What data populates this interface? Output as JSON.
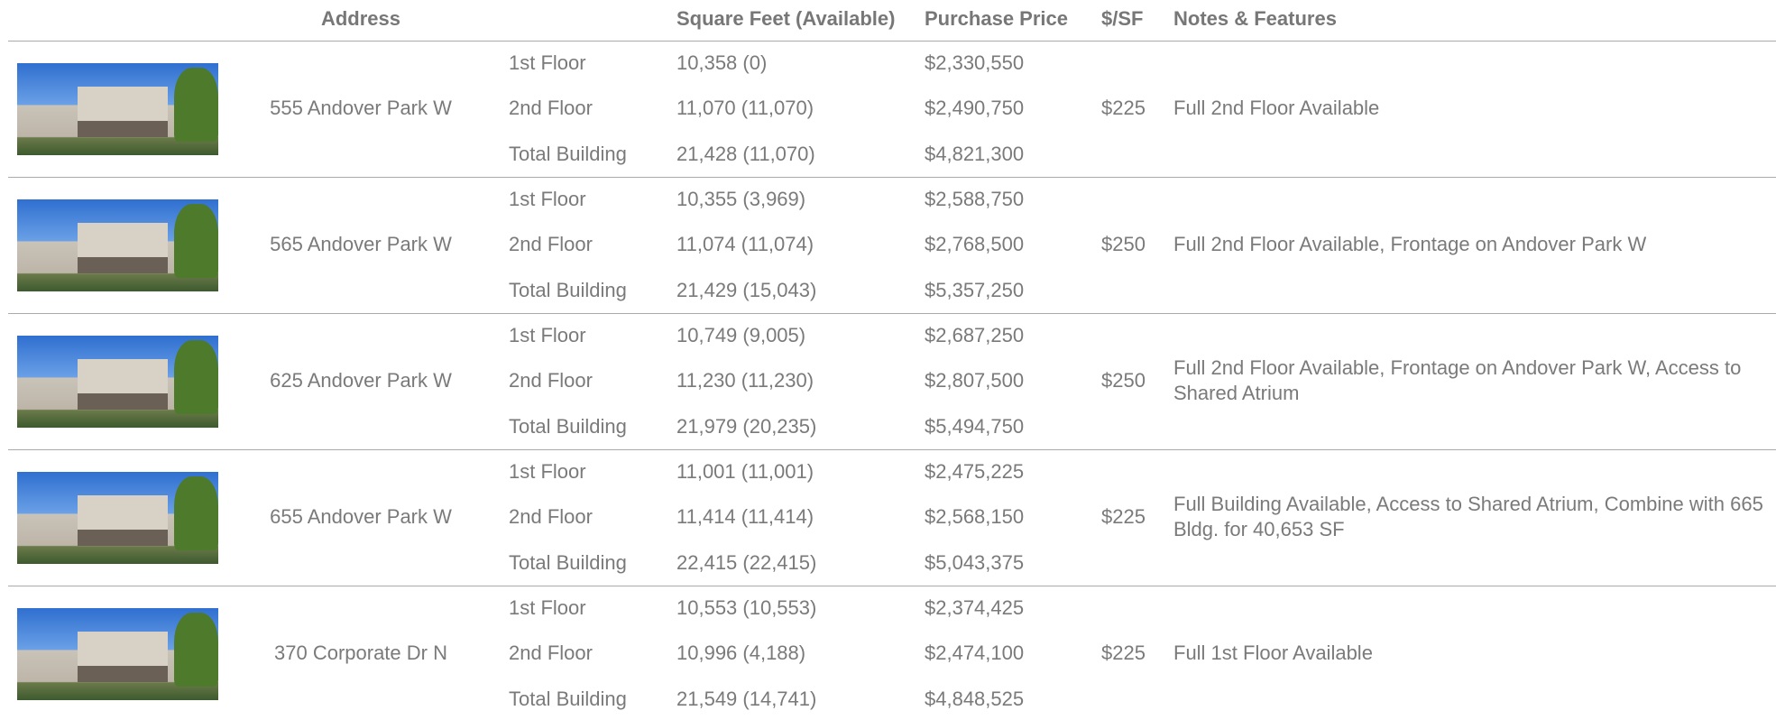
{
  "table": {
    "headers": {
      "address": "Address",
      "square_feet": "Square Feet (Available)",
      "purchase_price": "Purchase Price",
      "price_per_sf": "$/SF",
      "notes": "Notes & Features"
    },
    "rows": [
      {
        "address": "555 Andover Park W",
        "price_per_sf": "$225",
        "notes": "Full 2nd Floor Available",
        "floors": [
          {
            "label": "1st Floor",
            "square_feet": "10,358 (0)",
            "purchase_price": "$2,330,550"
          },
          {
            "label": "2nd Floor",
            "square_feet": "11,070 (11,070)",
            "purchase_price": "$2,490,750"
          },
          {
            "label": "Total Building",
            "square_feet": "21,428 (11,070)",
            "purchase_price": "$4,821,300"
          }
        ]
      },
      {
        "address": "565 Andover Park W",
        "price_per_sf": "$250",
        "notes": "Full 2nd Floor Available, Frontage on Andover Park W",
        "floors": [
          {
            "label": "1st Floor",
            "square_feet": "10,355 (3,969)",
            "purchase_price": "$2,588,750"
          },
          {
            "label": "2nd Floor",
            "square_feet": "11,074 (11,074)",
            "purchase_price": "$2,768,500"
          },
          {
            "label": "Total Building",
            "square_feet": "21,429 (15,043)",
            "purchase_price": "$5,357,250"
          }
        ]
      },
      {
        "address": "625 Andover Park W",
        "price_per_sf": "$250",
        "notes": "Full 2nd Floor Available, Frontage on Andover Park W, Access to Shared Atrium",
        "floors": [
          {
            "label": "1st Floor",
            "square_feet": "10,749 (9,005)",
            "purchase_price": "$2,687,250"
          },
          {
            "label": "2nd Floor",
            "square_feet": "11,230 (11,230)",
            "purchase_price": "$2,807,500"
          },
          {
            "label": "Total Building",
            "square_feet": "21,979 (20,235)",
            "purchase_price": "$5,494,750"
          }
        ]
      },
      {
        "address": "655 Andover Park W",
        "price_per_sf": "$225",
        "notes": "Full Building Available, Access to Shared Atrium, Combine with 665 Bldg. for 40,653 SF",
        "floors": [
          {
            "label": "1st Floor",
            "square_feet": "11,001 (11,001)",
            "purchase_price": "$2,475,225"
          },
          {
            "label": "2nd Floor",
            "square_feet": "11,414 (11,414)",
            "purchase_price": "$2,568,150"
          },
          {
            "label": "Total Building",
            "square_feet": "22,415 (22,415)",
            "purchase_price": "$5,043,375"
          }
        ]
      },
      {
        "address": "370 Corporate Dr N",
        "price_per_sf": "$225",
        "notes": "Full 1st Floor Available",
        "floors": [
          {
            "label": "1st Floor",
            "square_feet": "10,553 (10,553)",
            "purchase_price": "$2,374,425"
          },
          {
            "label": "2nd Floor",
            "square_feet": "10,996 (4,188)",
            "purchase_price": "$2,474,100"
          },
          {
            "label": "Total Building",
            "square_feet": "21,549 (14,741)",
            "purchase_price": "$4,848,525"
          }
        ]
      }
    ]
  }
}
